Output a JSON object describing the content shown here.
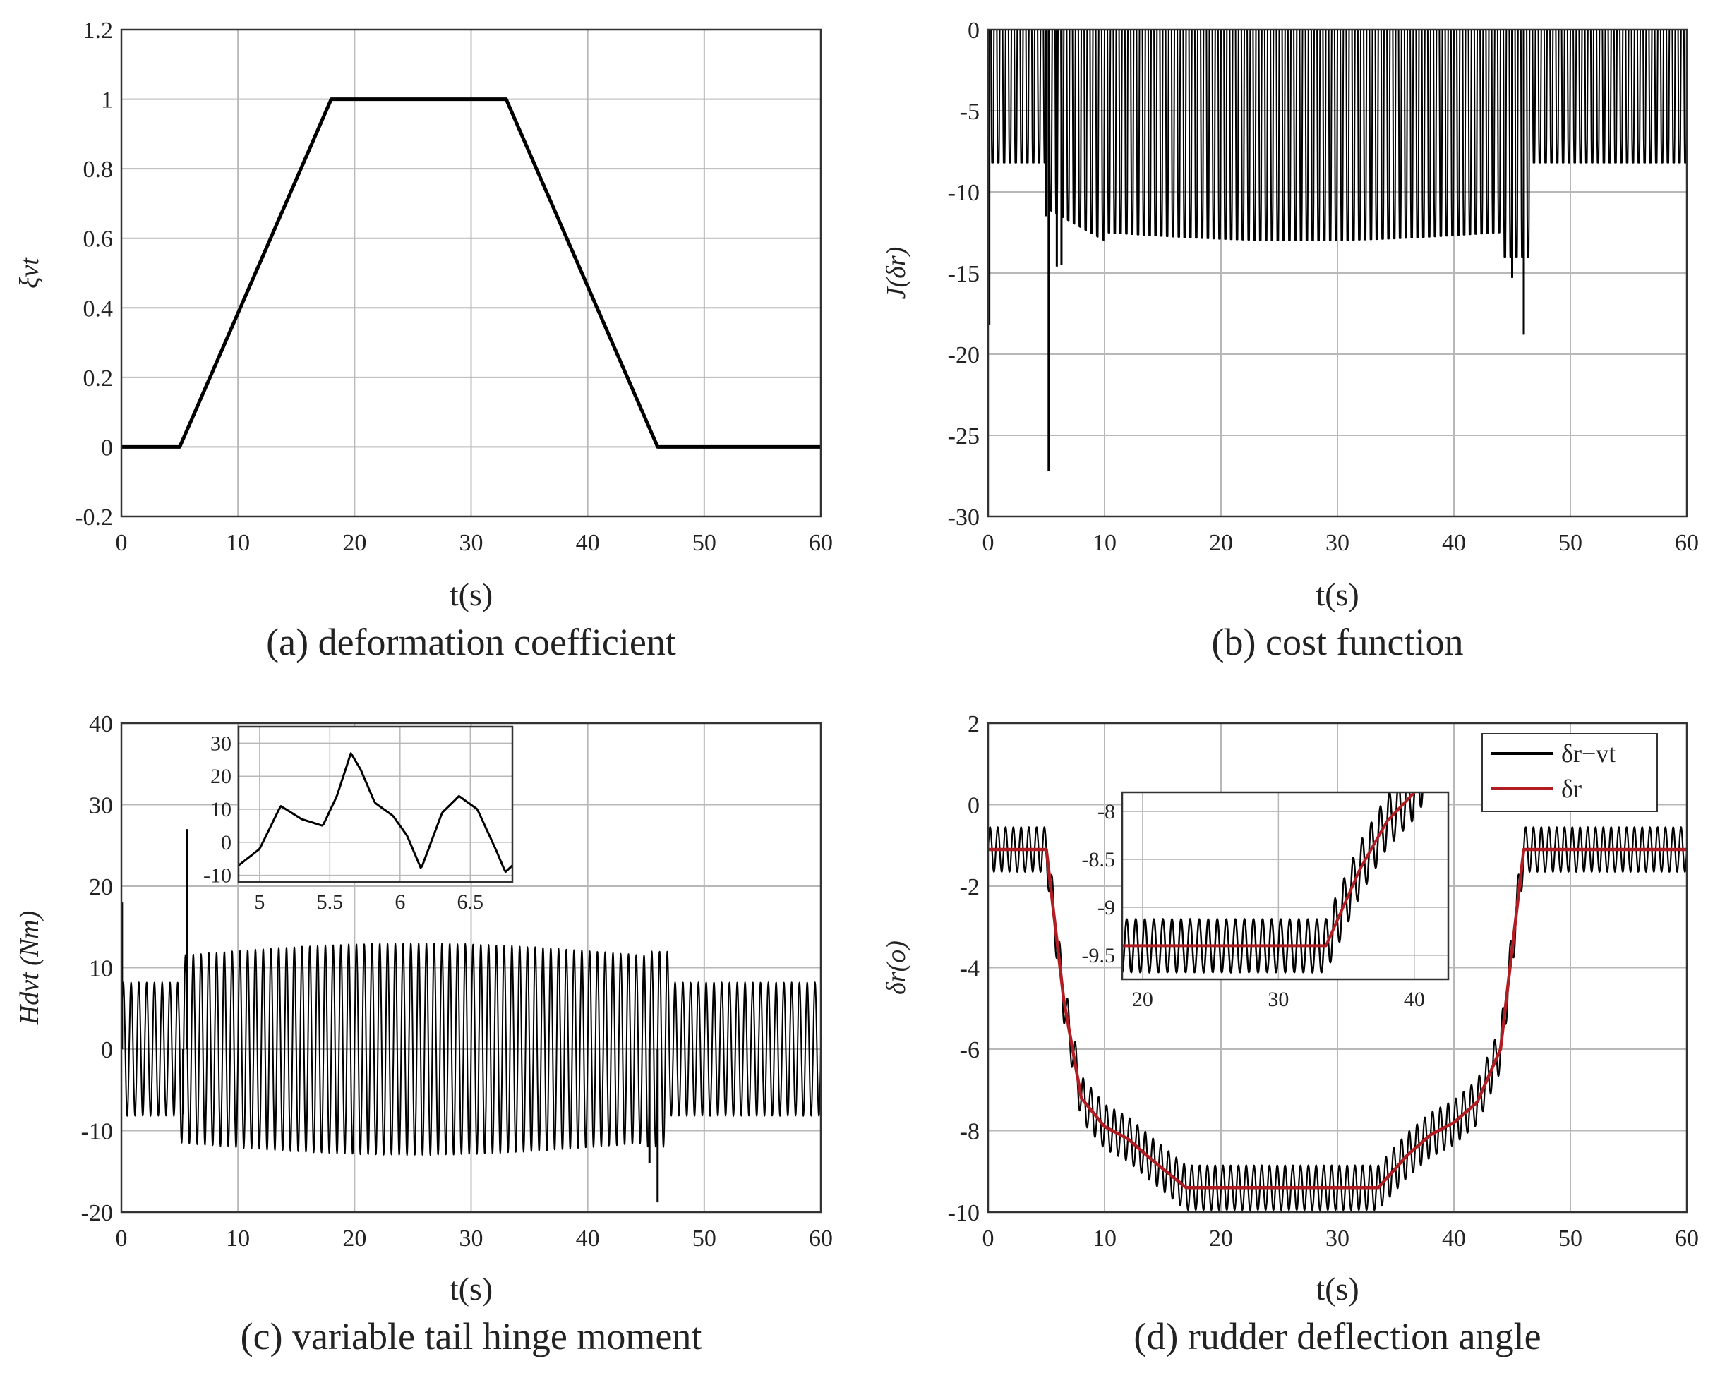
{
  "figure": {
    "panels": [
      {
        "id": "a",
        "caption": "(a) deformation coefficient",
        "chart_data": {
          "type": "line",
          "title": "",
          "xlabel": "t(s)",
          "ylabel": "ξvt",
          "xlim": [
            0,
            60
          ],
          "ylim": [
            -0.2,
            1.2
          ],
          "xticks": [
            "0",
            "10",
            "20",
            "30",
            "40",
            "50",
            "60"
          ],
          "yticks": [
            "-0.2",
            "0",
            "0.2",
            "0.4",
            "0.6",
            "0.8",
            "1",
            "1.2"
          ],
          "grid": true,
          "series": [
            {
              "name": "ξvt",
              "color": "#000000",
              "x": [
                0,
                5,
                18,
                33,
                46,
                60
              ],
              "y": [
                0,
                0,
                1,
                1,
                0,
                0
              ]
            }
          ]
        }
      },
      {
        "id": "b",
        "caption": "(b) cost function",
        "chart_data": {
          "type": "line",
          "title": "",
          "xlabel": "t(s)",
          "ylabel": "J(δr)",
          "xlim": [
            0,
            60
          ],
          "ylim": [
            -30,
            0
          ],
          "xticks": [
            "0",
            "10",
            "20",
            "30",
            "40",
            "50",
            "60"
          ],
          "yticks": [
            "-30",
            "-25",
            "-20",
            "-15",
            "-10",
            "-5",
            "0"
          ],
          "grid": true,
          "series": [
            {
              "name": "J(δr)",
              "color": "#000000",
              "description_points": {
                "upper_bound": 0,
                "lower_envelope_start": -8.2,
                "lower_envelope_mid": -13,
                "min_spike_t": 5.2,
                "min_spike_value": -27.2,
                "second_spike_t": 46,
                "second_spike_value": -18.8
              }
            }
          ]
        }
      },
      {
        "id": "c",
        "caption": "(c) variable tail hinge moment",
        "chart_data": {
          "type": "line",
          "title": "",
          "xlabel": "t(s)",
          "ylabel": "Hdvt (Nm)",
          "xlim": [
            0,
            60
          ],
          "ylim": [
            -20,
            40
          ],
          "xticks": [
            "0",
            "10",
            "20",
            "30",
            "40",
            "50",
            "60"
          ],
          "yticks": [
            "-20",
            "-10",
            "0",
            "10",
            "20",
            "30",
            "40"
          ],
          "grid": true,
          "series": [
            {
              "name": "Hdvt",
              "color": "#000000",
              "envelope": {
                "start_amplitude": 8.2,
                "mid_amplitude": 13,
                "end_amplitude": 8.2,
                "peak_t": 5.6,
                "peak_value": 27,
                "min_t": 46,
                "min_value": -18.8
              }
            }
          ],
          "inset": {
            "xlim": [
              4.85,
              6.8
            ],
            "ylim": [
              -12,
              35
            ],
            "xticks": [
              "5",
              "5.5",
              "6",
              "6.5"
            ],
            "yticks": [
              "-10",
              "0",
              "10",
              "20",
              "30"
            ],
            "x": [
              4.85,
              5.0,
              5.15,
              5.3,
              5.45,
              5.55,
              5.65,
              5.72,
              5.82,
              5.95,
              6.05,
              6.15,
              6.3,
              6.42,
              6.55,
              6.68,
              6.75,
              6.8
            ],
            "y": [
              -7,
              -2,
              11,
              7,
              5,
              14,
              27,
              22,
              12,
              8,
              2,
              -8,
              9,
              14,
              10,
              -2,
              -9,
              -7
            ]
          }
        }
      },
      {
        "id": "d",
        "caption": "(d) rudder deflection angle",
        "chart_data": {
          "type": "line",
          "title": "",
          "xlabel": "t(s)",
          "ylabel": "δr(o)",
          "xlim": [
            0,
            60
          ],
          "ylim": [
            -10,
            2
          ],
          "xticks": [
            "0",
            "10",
            "20",
            "30",
            "40",
            "50",
            "60"
          ],
          "yticks": [
            "-10",
            "-8",
            "-6",
            "-4",
            "-2",
            "0",
            "2"
          ],
          "grid": true,
          "legend": {
            "position": "top-right",
            "entries": [
              "δr−vt",
              "δr"
            ]
          },
          "series": [
            {
              "name": "δr−vt",
              "color": "#000000",
              "oscillation_amplitude": 0.55
            },
            {
              "name": "δr",
              "color": "#b01e23",
              "x": [
                0,
                5,
                6.5,
                8,
                10,
                12,
                14,
                17,
                20,
                25,
                30,
                33.5,
                36,
                38,
                40,
                42,
                44,
                46,
                60
              ],
              "y": [
                -1.1,
                -1.1,
                -4.8,
                -7.2,
                -7.9,
                -8.2,
                -8.7,
                -9.4,
                -9.4,
                -9.4,
                -9.4,
                -9.4,
                -8.6,
                -8.1,
                -7.8,
                -7.3,
                -6.0,
                -1.1,
                -1.1
              ]
            }
          ],
          "inset": {
            "xlim": [
              18.5,
              42.5
            ],
            "ylim": [
              -9.75,
              -7.8
            ],
            "xticks": [
              "20",
              "30",
              "40"
            ],
            "yticks": [
              "-8",
              "-8.5",
              "-9",
              "-9.5"
            ]
          }
        }
      }
    ]
  },
  "colors": {
    "line": "#000000",
    "red": "#b01e23",
    "grid": "#b8b8b8",
    "axis": "#333333"
  }
}
